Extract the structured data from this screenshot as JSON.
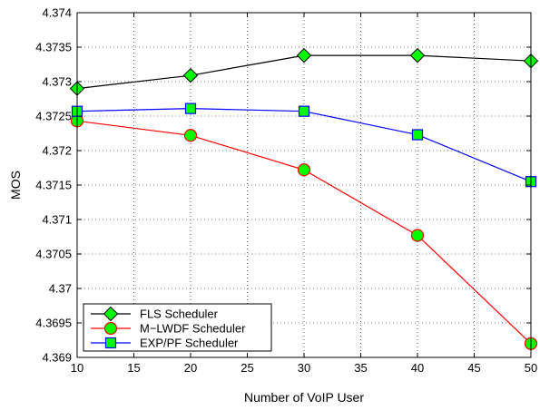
{
  "chart_data": {
    "type": "line",
    "title": "",
    "xlabel": "Number of VoIP User",
    "ylabel": "MOS",
    "xlim": [
      10,
      50
    ],
    "ylim": [
      4.369,
      4.374
    ],
    "xticks": [
      10,
      15,
      20,
      25,
      30,
      35,
      40,
      45,
      50
    ],
    "yticks": [
      4.369,
      4.3695,
      4.37,
      4.3705,
      4.371,
      4.3715,
      4.372,
      4.3725,
      4.373,
      4.3735,
      4.374
    ],
    "ytick_labels": [
      "4.369",
      "4.3695",
      "4.37",
      "4.3705",
      "4.371",
      "4.3715",
      "4.372",
      "4.3725",
      "4.373",
      "4.3735",
      "4.374"
    ],
    "grid": true,
    "legend_position": "bottom-left",
    "x": [
      10,
      20,
      30,
      40,
      50
    ],
    "series": [
      {
        "name": "FLS Scheduler",
        "values": [
          4.3729,
          4.37309,
          4.37338,
          4.37338,
          4.3733
        ],
        "line_color": "#000000",
        "marker": "diamond",
        "marker_color": "#00ff00"
      },
      {
        "name": "M−LWDF Scheduler",
        "values": [
          4.37243,
          4.37222,
          4.37172,
          4.37077,
          4.3692
        ],
        "line_color": "#ff0000",
        "marker": "circle",
        "marker_color": "#00ff00"
      },
      {
        "name": "EXP/PF Scheduler",
        "values": [
          4.37257,
          4.37261,
          4.37257,
          4.37223,
          4.37155
        ],
        "line_color": "#0000ff",
        "marker": "square",
        "marker_color": "#00ff00"
      }
    ]
  }
}
